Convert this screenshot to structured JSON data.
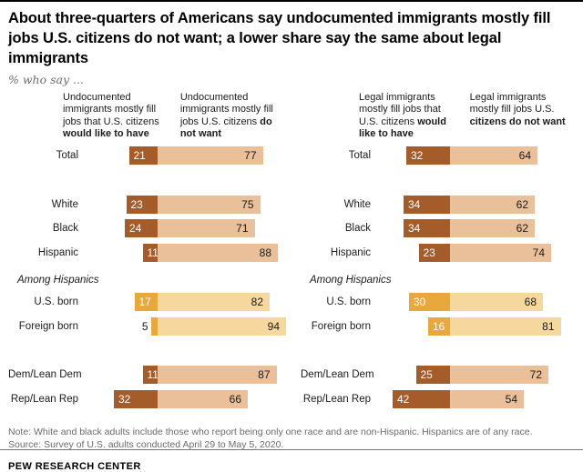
{
  "header": {
    "title": "About three-quarters of Americans say undocumented immigrants mostly fill jobs U.S. citizens do not want; a lower share say the same about legal immigrants",
    "subtitle": "% who say ..."
  },
  "footer": {
    "note": "Note: White and black adults include those who report being only one race and are non-Hispanic. Hispanics are of any race.",
    "source": "Source: Survey of U.S. adults conducted April 29 to May 5, 2020.",
    "brand": "PEW RESEARCH CENTER"
  },
  "colors": {
    "brown_dark": "#A55C2B",
    "brown_light": "#EAC09B",
    "gold_dark": "#E9A83C",
    "gold_light": "#F6D89E"
  },
  "chart_data": [
    {
      "type": "bar",
      "panel": "undocumented-immigrants",
      "headers": [
        {
          "text": "Undocumented immigrants mostly fill jobs that U.S. citizens ",
          "bold": "would like to have"
        },
        {
          "text": "Undocumented immigrants mostly fill jobs U.S. citizens ",
          "bold": "do not want"
        }
      ],
      "categories": [
        "Total",
        "White",
        "Black",
        "Hispanic",
        "U.S. born",
        "Foreign born",
        "Dem/Lean Dem",
        "Rep/Lean Rep"
      ],
      "series": [
        {
          "name": "would like to have",
          "values": [
            21,
            23,
            24,
            11,
            17,
            5,
            11,
            32
          ]
        },
        {
          "name": "do not want",
          "values": [
            77,
            75,
            71,
            88,
            82,
            94,
            87,
            66
          ]
        }
      ],
      "groups": [
        [
          0
        ],
        [
          1,
          2,
          3
        ],
        [
          4,
          5
        ],
        [
          6,
          7
        ]
      ],
      "section_labels": {
        "2": "Among Hispanics"
      },
      "gold_rows": [
        4,
        5
      ],
      "xlim": [
        0,
        100
      ],
      "legend": "none"
    },
    {
      "type": "bar",
      "panel": "legal-immigrants",
      "headers": [
        {
          "text": "Legal immigrants mostly fill jobs that U.S. citizens ",
          "bold": "would like to have"
        },
        {
          "text": "Legal immigrants mostly fill jobs U.S. ",
          "bold": "citizens do not want"
        }
      ],
      "categories": [
        "Total",
        "White",
        "Black",
        "Hispanic",
        "U.S. born",
        "Foreign born",
        "Dem/Lean Dem",
        "Rep/Lean Rep"
      ],
      "series": [
        {
          "name": "would like to have",
          "values": [
            32,
            34,
            34,
            23,
            30,
            16,
            25,
            42
          ]
        },
        {
          "name": "do not want",
          "values": [
            64,
            62,
            62,
            74,
            68,
            81,
            72,
            54
          ]
        }
      ],
      "groups": [
        [
          0
        ],
        [
          1,
          2,
          3
        ],
        [
          4,
          5
        ],
        [
          6,
          7
        ]
      ],
      "section_labels": {
        "2": "Among Hispanics"
      },
      "gold_rows": [
        4,
        5
      ],
      "xlim": [
        0,
        100
      ],
      "legend": "none"
    }
  ]
}
